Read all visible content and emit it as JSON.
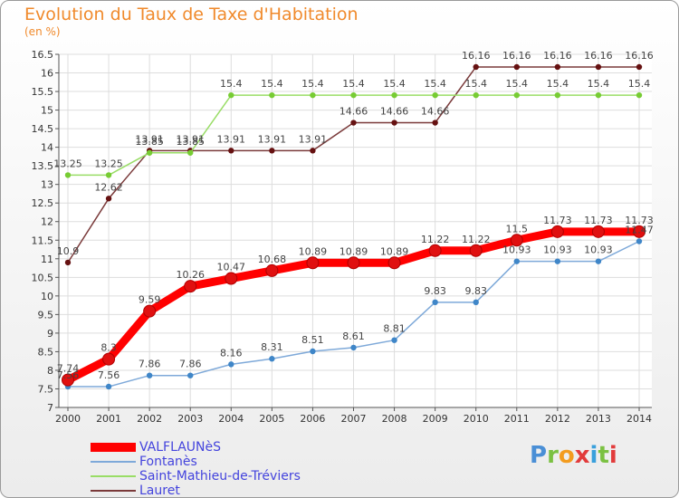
{
  "title": "Evolution du Taux de Taxe d'Habitation",
  "subtitle": "(en %)",
  "brand": "Proxiti",
  "brand_colors": [
    "#4a8fd6",
    "#7bc142",
    "#f39c1f",
    "#e23b3b",
    "#3aa0dc",
    "#7bc142",
    "#e23b3b"
  ],
  "chart_data": {
    "type": "line",
    "x": [
      2000,
      2001,
      2002,
      2003,
      2004,
      2005,
      2006,
      2007,
      2008,
      2009,
      2010,
      2011,
      2012,
      2013,
      2014
    ],
    "ylim": [
      7,
      16.5
    ],
    "yticks": [
      "7",
      "7.5",
      "8",
      "8.5",
      "9",
      "9.5",
      "10",
      "10.5",
      "11",
      "11.5",
      "12",
      "12.5",
      "13",
      "13.5",
      "14",
      "14.5",
      "15",
      "15.5",
      "16",
      "16.5"
    ],
    "grid": true,
    "legend_position": "bottom-left",
    "series": [
      {
        "name": "VALFLAUNèS",
        "color": "#ff0000",
        "marker_color": "#e01010",
        "values": [
          7.74,
          8.3,
          9.59,
          10.26,
          10.47,
          10.68,
          10.89,
          10.89,
          10.89,
          11.22,
          11.22,
          11.5,
          11.73,
          11.73,
          11.73
        ],
        "labels": [
          "7.74",
          "8.3",
          "9.59",
          "10.26",
          "10.47",
          "10.68",
          "10.89",
          "10.89",
          "10.89",
          "11.22",
          "11.22",
          "11.5",
          "11.73",
          "11.73",
          "11.73"
        ]
      },
      {
        "name": "Fontanès",
        "color": "#7ea9d9",
        "marker_color": "#3f86c8",
        "values": [
          7.56,
          7.56,
          7.86,
          7.86,
          8.16,
          8.31,
          8.51,
          8.61,
          8.81,
          9.83,
          9.83,
          10.93,
          10.93,
          10.93,
          11.47
        ],
        "labels": [
          "7.56",
          "7.56",
          "7.86",
          "7.86",
          "8.16",
          "8.31",
          "8.51",
          "8.61",
          "8.81",
          "9.83",
          "9.83",
          "10.93",
          "10.93",
          "10.93",
          "11.47"
        ]
      },
      {
        "name": "Saint-Mathieu-de-Tréviers",
        "color": "#99dd66",
        "marker_color": "#77cc33",
        "values": [
          13.25,
          13.25,
          13.85,
          13.85,
          15.4,
          15.4,
          15.4,
          15.4,
          15.4,
          15.4,
          15.4,
          15.4,
          15.4,
          15.4,
          15.4
        ],
        "labels": [
          "13.25",
          "13.25",
          "13.85",
          "13.85",
          "15.4",
          "15.4",
          "15.4",
          "15.4",
          "15.4",
          "15.4",
          "15.4",
          "15.4",
          "15.4",
          "15.4",
          "15.4"
        ]
      },
      {
        "name": "Lauret",
        "color": "#7a3a3a",
        "marker_color": "#661111",
        "values": [
          10.9,
          12.62,
          13.91,
          13.91,
          13.91,
          13.91,
          13.91,
          14.66,
          14.66,
          14.66,
          16.16,
          16.16,
          16.16,
          16.16,
          16.16
        ],
        "labels": [
          "10.9",
          "12.62",
          "13.91",
          "13.91",
          "13.91",
          "13.91",
          "13.91",
          "14.66",
          "14.66",
          "14.66",
          "16.16",
          "16.16",
          "16.16",
          "16.16",
          "16.16"
        ]
      }
    ]
  }
}
